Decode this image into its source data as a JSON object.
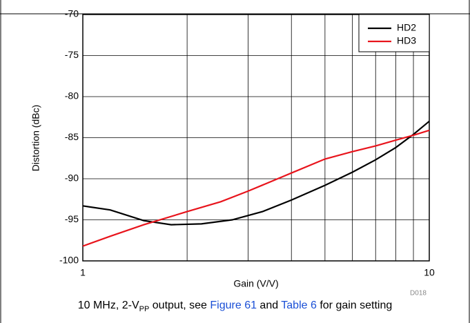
{
  "chart_data": {
    "type": "line",
    "xlabel": "Gain (V/V)",
    "ylabel": "Distortion (dBc)",
    "code": "D018",
    "xscale": "log",
    "xlim": [
      1,
      10
    ],
    "xticks": [
      1,
      10
    ],
    "xminor": [
      2,
      3,
      4,
      5,
      6,
      7,
      8,
      9
    ],
    "ylim": [
      -100,
      -70
    ],
    "yticks": [
      -100,
      -95,
      -90,
      -85,
      -80,
      -75,
      -70
    ],
    "grid": true,
    "legend": "upper right",
    "series": [
      {
        "name": "HD2",
        "color": "#000000",
        "x": [
          1,
          1.2,
          1.5,
          1.8,
          2.2,
          2.7,
          3.3,
          4,
          5,
          6,
          7,
          8,
          9,
          10
        ],
        "values": [
          -93.3,
          -93.8,
          -95.1,
          -95.6,
          -95.5,
          -95.0,
          -94.0,
          -92.6,
          -90.8,
          -89.2,
          -87.7,
          -86.2,
          -84.6,
          -83.0
        ]
      },
      {
        "name": "HD3",
        "color": "#e8141c",
        "x": [
          1,
          1.2,
          1.5,
          2,
          2.5,
          3,
          4,
          5,
          6,
          7,
          8,
          9,
          10
        ],
        "values": [
          -98.2,
          -97.0,
          -95.6,
          -94.0,
          -92.8,
          -91.5,
          -89.3,
          -87.6,
          -86.7,
          -86.0,
          -85.3,
          -84.7,
          -84.1
        ]
      }
    ],
    "caption": {
      "a": "10 MHz, 2-V",
      "sub": "PP",
      "b": " output, see ",
      "link1": "Figure 61",
      "c": " and ",
      "link2": "Table 6",
      "d": " for gain setting"
    }
  }
}
